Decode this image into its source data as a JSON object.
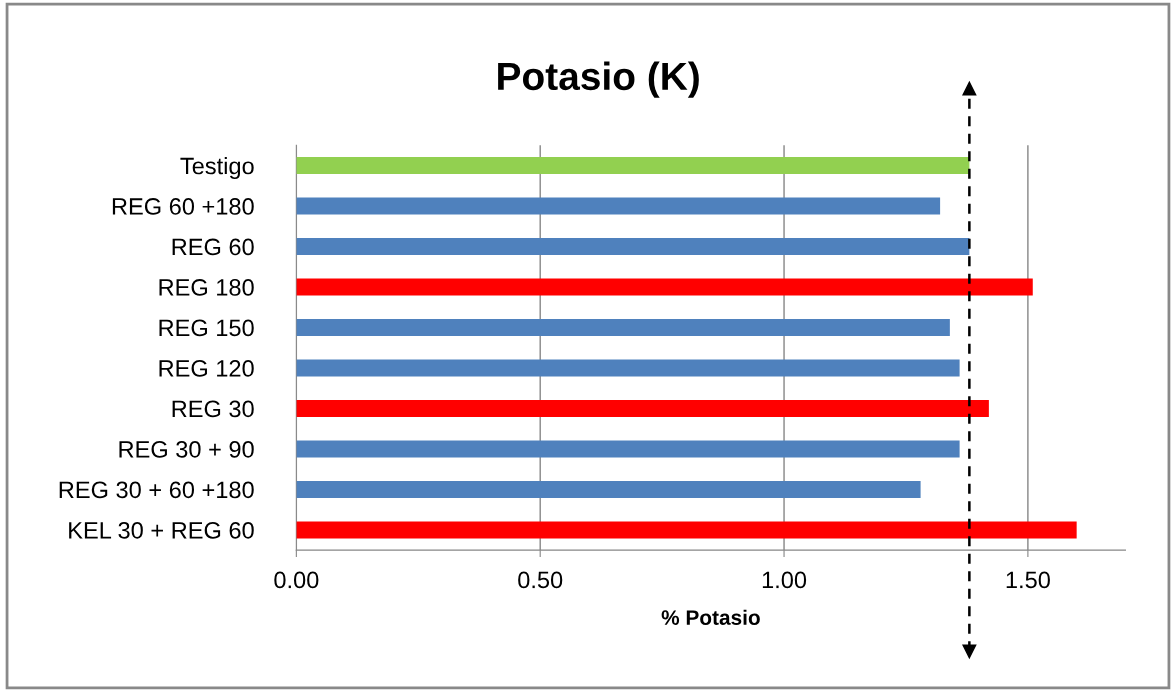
{
  "chart_data": {
    "type": "bar",
    "orientation": "horizontal",
    "title": "Potasio (K)",
    "xlabel": "% Potasio",
    "categories": [
      "Testigo",
      "REG 60 +180",
      "REG 60",
      "REG 180",
      "REG 150",
      "REG 120",
      "REG 30",
      "REG 30 + 90",
      "REG 30 + 60 +180",
      "KEL 30 + REG 60"
    ],
    "values": [
      1.38,
      1.32,
      1.38,
      1.51,
      1.34,
      1.36,
      1.42,
      1.36,
      1.28,
      1.6
    ],
    "colors": [
      "#92d050",
      "#4f81bd",
      "#4f81bd",
      "#ff0000",
      "#4f81bd",
      "#4f81bd",
      "#ff0000",
      "#4f81bd",
      "#4f81bd",
      "#ff0000"
    ],
    "xlim": [
      0,
      1.7
    ],
    "xticks": [
      {
        "value": 0,
        "label": "0.00"
      },
      {
        "value": 0.5,
        "label": "0.50"
      },
      {
        "value": 1.0,
        "label": "1.00"
      },
      {
        "value": 1.5,
        "label": "1.50"
      }
    ],
    "grid": "x",
    "legend": false,
    "ref_lines": [
      {
        "axis": "x",
        "value": 1.38,
        "color": "#000000",
        "line_style": "dashed"
      }
    ]
  }
}
